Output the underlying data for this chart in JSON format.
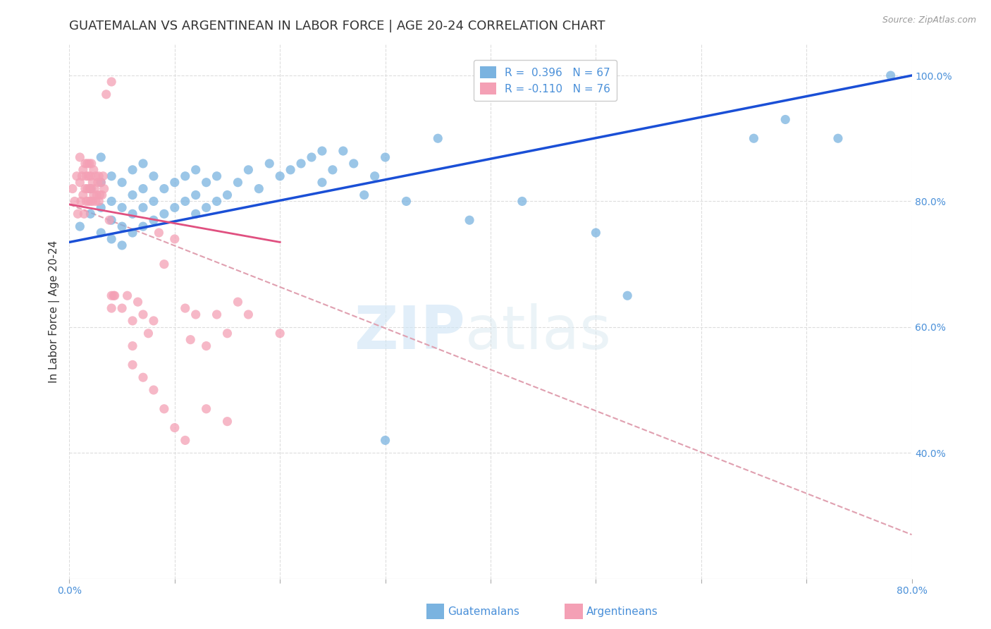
{
  "title": "GUATEMALAN VS ARGENTINEAN IN LABOR FORCE | AGE 20-24 CORRELATION CHART",
  "source": "Source: ZipAtlas.com",
  "ylabel": "In Labor Force | Age 20-24",
  "x_min": 0.0,
  "x_max": 0.8,
  "y_min": 0.2,
  "y_max": 1.05,
  "y_ticks": [
    0.4,
    0.6,
    0.8,
    1.0
  ],
  "y_tick_labels": [
    "40.0%",
    "60.0%",
    "80.0%",
    "100.0%"
  ],
  "blue_color": "#7ab3e0",
  "pink_color": "#f4a0b5",
  "blue_line_color": "#1a4fd6",
  "pink_line_color": "#e05080",
  "pink_dash_color": "#e0a0b0",
  "r_blue": 0.396,
  "n_blue": 67,
  "r_pink": -0.11,
  "n_pink": 76,
  "blue_scatter_x": [
    0.01,
    0.02,
    0.02,
    0.03,
    0.03,
    0.03,
    0.03,
    0.04,
    0.04,
    0.04,
    0.04,
    0.05,
    0.05,
    0.05,
    0.05,
    0.06,
    0.06,
    0.06,
    0.06,
    0.07,
    0.07,
    0.07,
    0.07,
    0.08,
    0.08,
    0.08,
    0.09,
    0.09,
    0.1,
    0.1,
    0.11,
    0.11,
    0.12,
    0.12,
    0.12,
    0.13,
    0.13,
    0.14,
    0.14,
    0.15,
    0.16,
    0.17,
    0.18,
    0.19,
    0.2,
    0.21,
    0.22,
    0.23,
    0.24,
    0.24,
    0.25,
    0.26,
    0.27,
    0.28,
    0.29,
    0.3,
    0.32,
    0.35,
    0.38,
    0.43,
    0.5,
    0.53,
    0.65,
    0.68,
    0.73,
    0.78,
    0.3
  ],
  "blue_scatter_y": [
    0.76,
    0.78,
    0.82,
    0.75,
    0.79,
    0.83,
    0.87,
    0.74,
    0.77,
    0.8,
    0.84,
    0.73,
    0.76,
    0.79,
    0.83,
    0.75,
    0.78,
    0.81,
    0.85,
    0.76,
    0.79,
    0.82,
    0.86,
    0.77,
    0.8,
    0.84,
    0.78,
    0.82,
    0.79,
    0.83,
    0.8,
    0.84,
    0.78,
    0.81,
    0.85,
    0.79,
    0.83,
    0.8,
    0.84,
    0.81,
    0.83,
    0.85,
    0.82,
    0.86,
    0.84,
    0.85,
    0.86,
    0.87,
    0.83,
    0.88,
    0.85,
    0.88,
    0.86,
    0.81,
    0.84,
    0.42,
    0.8,
    0.9,
    0.77,
    0.8,
    0.75,
    0.65,
    0.9,
    0.93,
    0.9,
    1.0,
    0.87
  ],
  "pink_scatter_x": [
    0.003,
    0.005,
    0.007,
    0.008,
    0.01,
    0.01,
    0.011,
    0.012,
    0.013,
    0.013,
    0.014,
    0.015,
    0.015,
    0.016,
    0.016,
    0.017,
    0.017,
    0.018,
    0.018,
    0.019,
    0.019,
    0.02,
    0.02,
    0.021,
    0.021,
    0.022,
    0.022,
    0.023,
    0.023,
    0.024,
    0.025,
    0.025,
    0.026,
    0.027,
    0.028,
    0.028,
    0.029,
    0.03,
    0.031,
    0.032,
    0.033,
    0.035,
    0.038,
    0.04,
    0.042,
    0.043,
    0.05,
    0.055,
    0.06,
    0.065,
    0.07,
    0.075,
    0.08,
    0.085,
    0.09,
    0.1,
    0.11,
    0.115,
    0.12,
    0.13,
    0.14,
    0.15,
    0.16,
    0.17,
    0.2,
    0.13,
    0.15,
    0.04,
    0.04,
    0.06,
    0.06,
    0.07,
    0.08,
    0.09,
    0.1,
    0.11
  ],
  "pink_scatter_y": [
    0.82,
    0.8,
    0.84,
    0.78,
    0.83,
    0.87,
    0.8,
    0.84,
    0.81,
    0.85,
    0.78,
    0.82,
    0.86,
    0.8,
    0.84,
    0.82,
    0.86,
    0.8,
    0.84,
    0.82,
    0.86,
    0.8,
    0.84,
    0.82,
    0.86,
    0.8,
    0.83,
    0.81,
    0.85,
    0.82,
    0.8,
    0.84,
    0.81,
    0.83,
    0.8,
    0.84,
    0.81,
    0.83,
    0.81,
    0.84,
    0.82,
    0.97,
    0.77,
    0.99,
    0.65,
    0.65,
    0.63,
    0.65,
    0.61,
    0.64,
    0.62,
    0.59,
    0.61,
    0.75,
    0.7,
    0.74,
    0.63,
    0.58,
    0.62,
    0.57,
    0.62,
    0.59,
    0.64,
    0.62,
    0.59,
    0.47,
    0.45,
    0.65,
    0.63,
    0.57,
    0.54,
    0.52,
    0.5,
    0.47,
    0.44,
    0.42
  ],
  "blue_trend_x": [
    0.0,
    0.8
  ],
  "blue_trend_y": [
    0.735,
    1.0
  ],
  "pink_trend_x": [
    0.0,
    0.2
  ],
  "pink_trend_y": [
    0.795,
    0.735
  ],
  "pink_dash_trend_x": [
    0.0,
    0.8
  ],
  "pink_dash_trend_y": [
    0.795,
    0.27
  ],
  "watermark_zip": "ZIP",
  "watermark_atlas": "atlas",
  "legend_labels": [
    "Guatemalans",
    "Argentineans"
  ],
  "title_color": "#333333",
  "axis_color": "#4a90d9",
  "tick_color": "#4a90d9",
  "grid_color": "#dddddd",
  "title_fontsize": 13,
  "axis_label_fontsize": 11,
  "tick_fontsize": 10,
  "legend_fontsize": 11
}
